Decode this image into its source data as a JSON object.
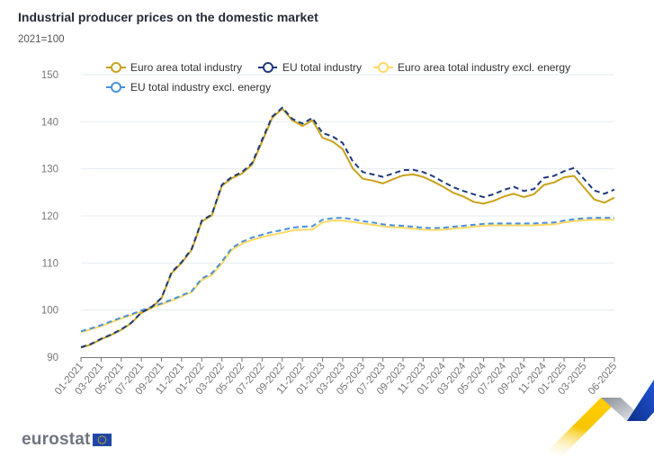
{
  "header": {
    "title": "Industrial producer prices on the domestic market",
    "subtitle": "2021=100"
  },
  "logo": {
    "text": "eurostat",
    "flag_icon": "eu-flag-icon"
  },
  "chart_data": {
    "type": "line",
    "title": "Industrial producer prices on the domestic market",
    "subtitle": "2021=100",
    "xlabel": "",
    "ylabel": "",
    "ylim": [
      90,
      150
    ],
    "yticks": [
      90,
      100,
      110,
      120,
      130,
      140,
      150
    ],
    "grid": true,
    "legend_position": "top",
    "x": [
      "01-2021",
      "02-2021",
      "03-2021",
      "04-2021",
      "05-2021",
      "06-2021",
      "07-2021",
      "08-2021",
      "09-2021",
      "10-2021",
      "11-2021",
      "12-2021",
      "01-2022",
      "02-2022",
      "03-2022",
      "04-2022",
      "05-2022",
      "06-2022",
      "07-2022",
      "08-2022",
      "09-2022",
      "10-2022",
      "11-2022",
      "12-2022",
      "01-2023",
      "02-2023",
      "03-2023",
      "04-2023",
      "05-2023",
      "06-2023",
      "07-2023",
      "08-2023",
      "09-2023",
      "10-2023",
      "11-2023",
      "12-2023",
      "01-2024",
      "02-2024",
      "03-2024",
      "04-2024",
      "05-2024",
      "06-2024",
      "07-2024",
      "08-2024",
      "09-2024",
      "10-2024",
      "11-2024",
      "12-2024",
      "01-2025",
      "02-2025",
      "03-2025",
      "04-2025",
      "05-2025",
      "06-2025"
    ],
    "xtick_labels": [
      "01-2021",
      "03-2021",
      "05-2021",
      "07-2021",
      "09-2021",
      "11-2021",
      "01-2022",
      "03-2022",
      "05-2022",
      "07-2022",
      "09-2022",
      "11-2022",
      "01-2023",
      "03-2023",
      "05-2023",
      "07-2023",
      "09-2023",
      "11-2023",
      "01-2024",
      "03-2024",
      "05-2024",
      "07-2024",
      "09-2024",
      "11-2024",
      "01-2025",
      "03-2025",
      "06-2025"
    ],
    "series": [
      {
        "name": "Euro area total industry",
        "color": "#c9a21b",
        "dash": "solid",
        "values": [
          92.0,
          92.7,
          93.8,
          94.7,
          95.8,
          97.2,
          99.4,
          100.5,
          102.5,
          107.8,
          110.0,
          112.8,
          118.8,
          120.1,
          126.4,
          128.0,
          129.0,
          130.9,
          135.8,
          140.8,
          142.8,
          140.3,
          139.1,
          140.3,
          136.6,
          135.8,
          134.2,
          130.1,
          127.9,
          127.5,
          126.9,
          127.8,
          128.6,
          128.8,
          128.3,
          127.3,
          126.2,
          124.9,
          124.1,
          123.0,
          122.6,
          123.2,
          124.1,
          124.7,
          124.0,
          124.6,
          126.6,
          127.1,
          128.2,
          128.5,
          126.0,
          123.5,
          122.8,
          123.9
        ]
      },
      {
        "name": "EU total industry",
        "color": "#1d3b7c",
        "dash": "dashed",
        "values": [
          92.1,
          92.8,
          93.9,
          94.8,
          95.9,
          97.3,
          99.5,
          100.6,
          102.6,
          108.0,
          110.2,
          113.0,
          119.0,
          120.3,
          126.6,
          128.3,
          129.3,
          131.2,
          136.2,
          141.1,
          143.0,
          140.6,
          139.6,
          140.8,
          137.6,
          136.9,
          135.5,
          131.6,
          129.3,
          128.8,
          128.3,
          129.0,
          129.7,
          129.8,
          129.3,
          128.4,
          127.2,
          126.1,
          125.3,
          124.6,
          124.0,
          124.6,
          125.5,
          126.2,
          125.3,
          125.7,
          128.1,
          128.5,
          129.5,
          130.2,
          127.8,
          125.4,
          124.7,
          125.6
        ]
      },
      {
        "name": "Euro area total industry excl. energy",
        "color": "#ffd966",
        "dash": "solid",
        "values": [
          95.3,
          95.9,
          96.6,
          97.4,
          98.2,
          98.9,
          99.7,
          100.5,
          101.2,
          102.0,
          102.9,
          103.8,
          106.4,
          107.4,
          109.9,
          112.8,
          114.1,
          114.9,
          115.5,
          116.0,
          116.4,
          116.9,
          117.1,
          117.1,
          118.6,
          119.0,
          119.0,
          118.7,
          118.4,
          118.1,
          117.8,
          117.6,
          117.5,
          117.3,
          117.1,
          117.0,
          117.1,
          117.3,
          117.5,
          117.7,
          117.9,
          118.0,
          118.0,
          118.0,
          118.0,
          118.0,
          118.1,
          118.2,
          118.6,
          118.9,
          119.1,
          119.2,
          119.2,
          119.2
        ]
      },
      {
        "name": "EU total industry excl. energy",
        "color": "#4a90d9",
        "dash": "dashed",
        "values": [
          95.5,
          96.1,
          96.8,
          97.6,
          98.4,
          99.1,
          99.9,
          100.7,
          101.4,
          102.2,
          103.1,
          104.0,
          106.7,
          107.8,
          110.3,
          113.2,
          114.5,
          115.4,
          116.0,
          116.6,
          117.0,
          117.5,
          117.7,
          117.8,
          119.2,
          119.5,
          119.6,
          119.3,
          118.9,
          118.6,
          118.2,
          118.0,
          117.9,
          117.7,
          117.5,
          117.4,
          117.5,
          117.7,
          117.9,
          118.1,
          118.3,
          118.4,
          118.4,
          118.4,
          118.4,
          118.4,
          118.5,
          118.6,
          119.0,
          119.3,
          119.5,
          119.6,
          119.6,
          119.6
        ]
      }
    ]
  }
}
